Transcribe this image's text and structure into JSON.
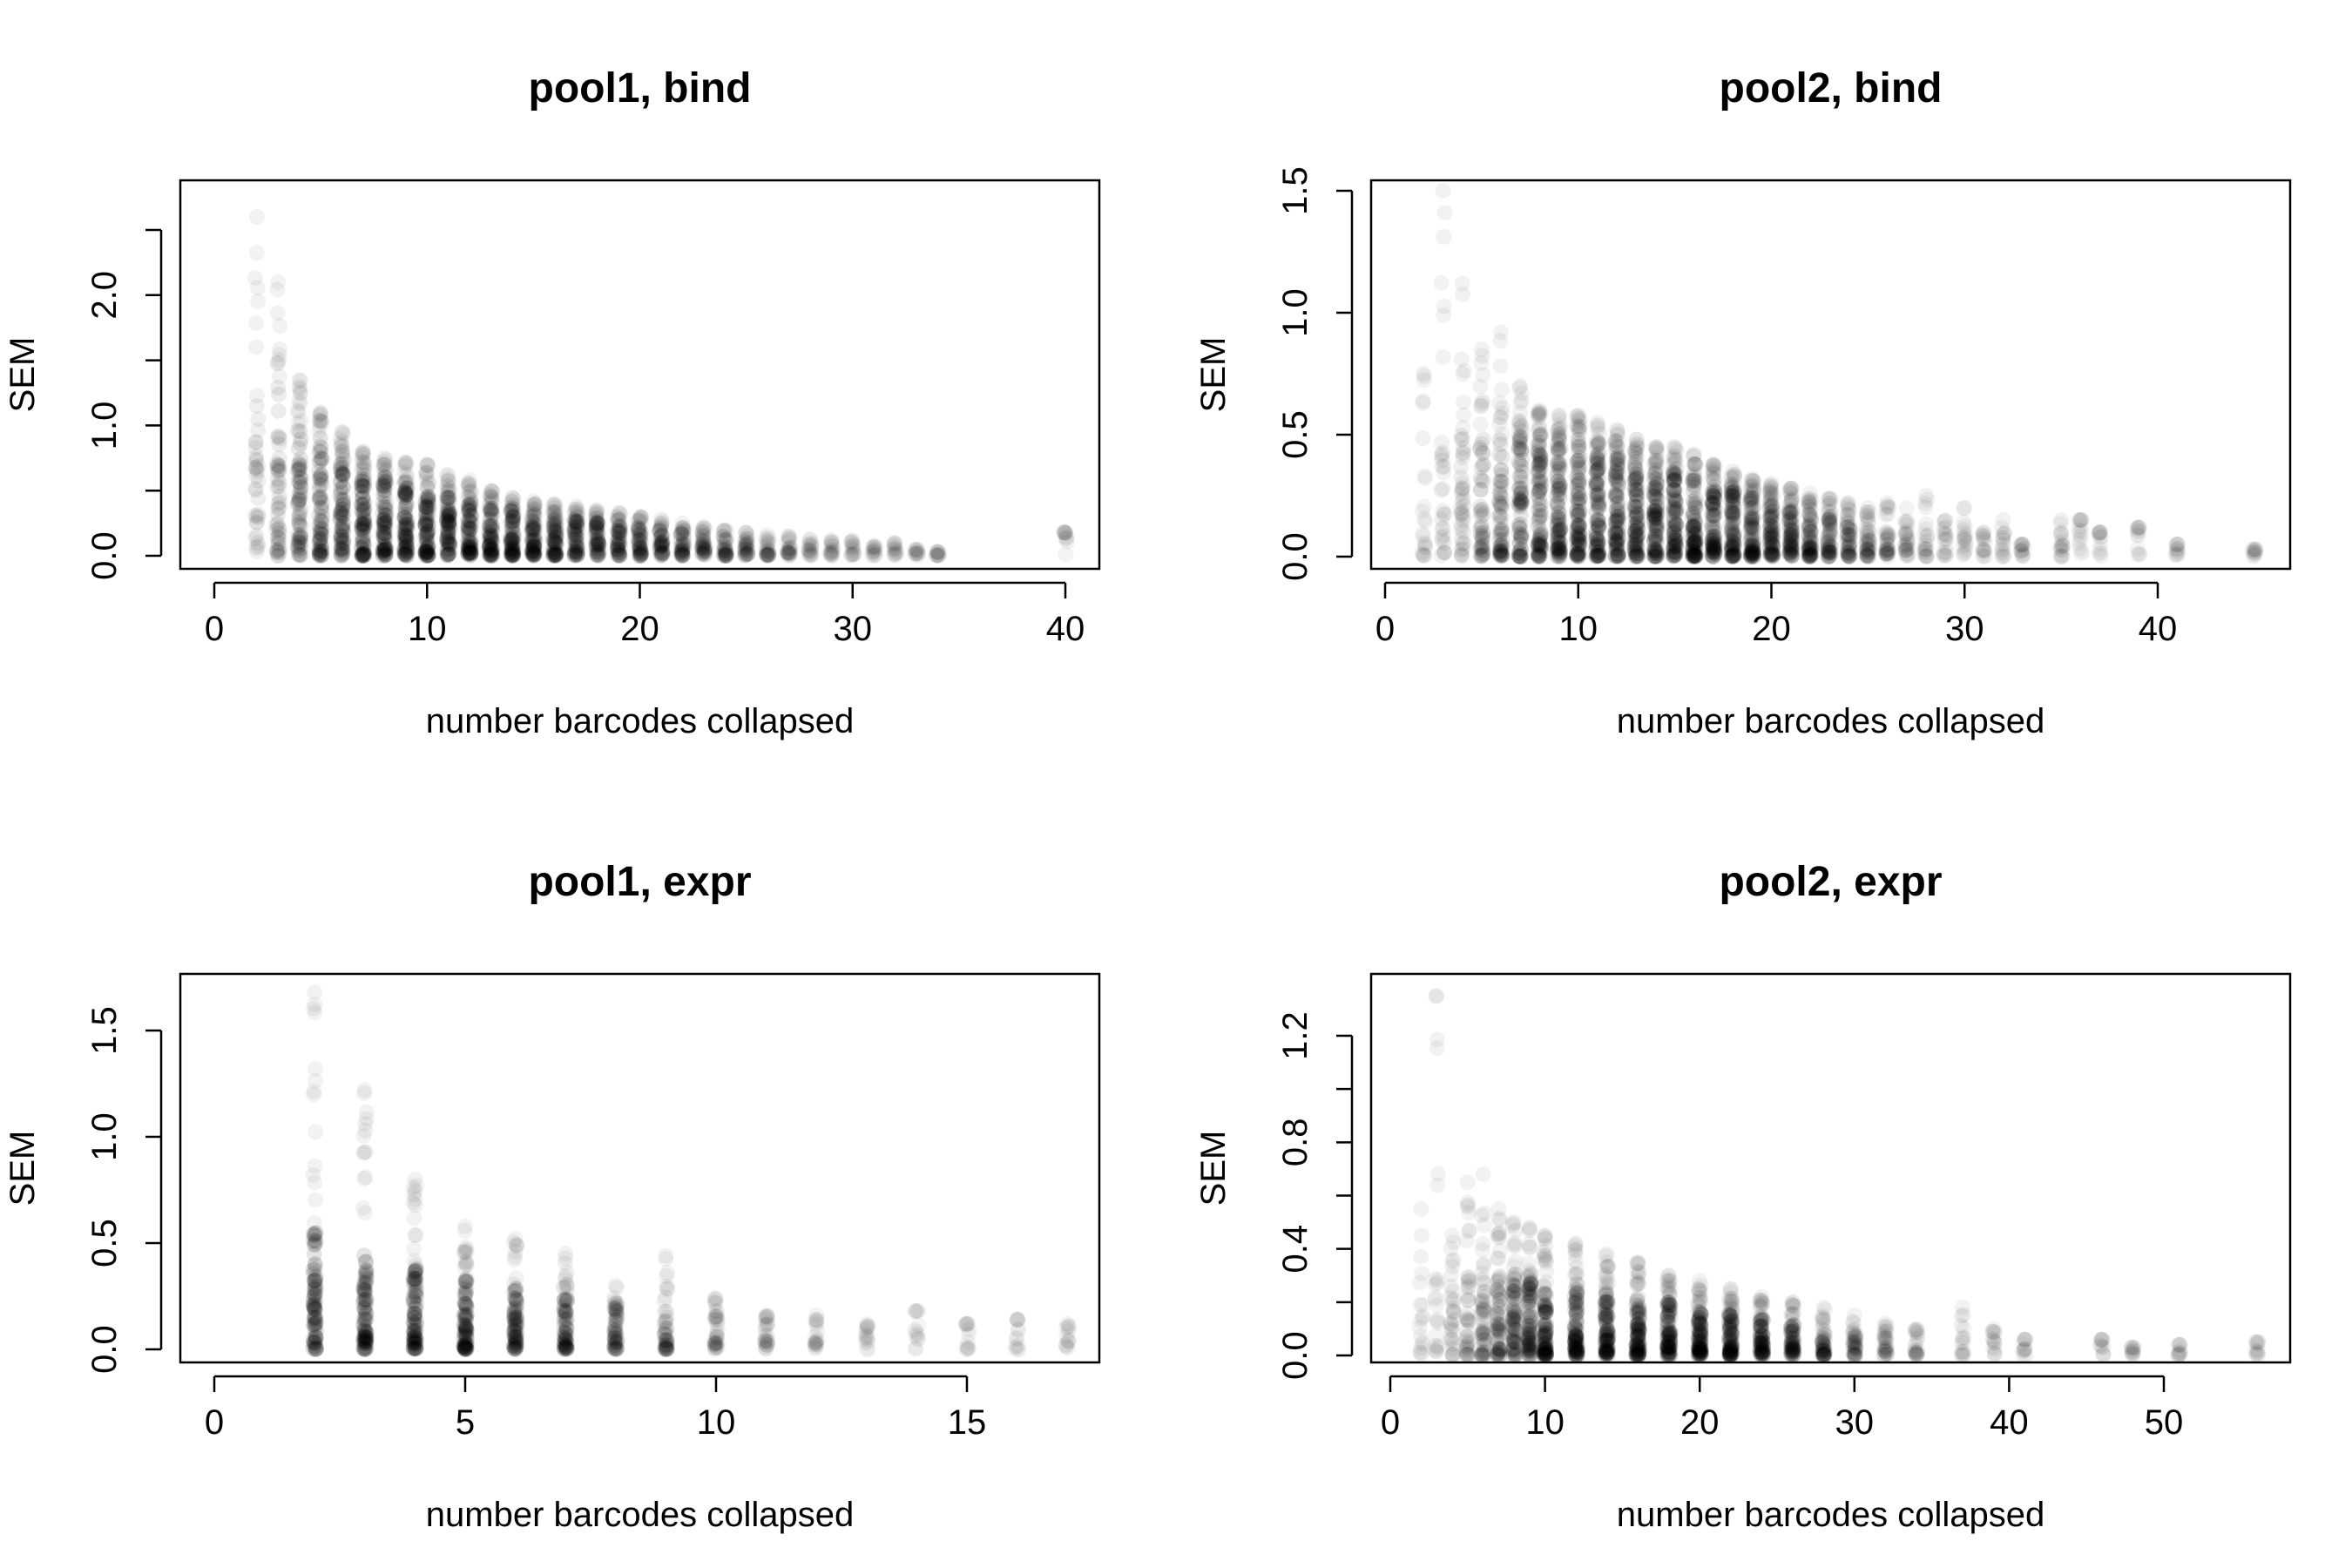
{
  "chart_data": [
    {
      "type": "scatter",
      "title": "pool1, bind",
      "xlabel": "number barcodes collapsed",
      "ylabel": "SEM",
      "xlim": [
        0,
        40
      ],
      "ylim": [
        0,
        2.5
      ],
      "xticks": [
        "0",
        "10",
        "20",
        "30",
        "40"
      ],
      "yticks": [
        "0.0",
        "1.0",
        "2.0"
      ],
      "y_minor_ticks": [
        0.5,
        1.5,
        2.5
      ],
      "point_color": "#000000",
      "summary": [
        {
          "x": 2,
          "max": 2.6,
          "core_max": 1.2,
          "density": 0.35
        },
        {
          "x": 3,
          "max": 2.1,
          "core_max": 1.3,
          "density": 0.55
        },
        {
          "x": 4,
          "max": 1.35,
          "core_max": 1.0,
          "density": 0.75
        },
        {
          "x": 5,
          "max": 1.1,
          "core_max": 0.85,
          "density": 0.85
        },
        {
          "x": 6,
          "max": 0.95,
          "core_max": 0.75,
          "density": 0.9
        },
        {
          "x": 7,
          "max": 0.8,
          "core_max": 0.65,
          "density": 0.95
        },
        {
          "x": 8,
          "max": 0.75,
          "core_max": 0.6,
          "density": 0.95
        },
        {
          "x": 9,
          "max": 0.72,
          "core_max": 0.55,
          "density": 0.95
        },
        {
          "x": 10,
          "max": 0.7,
          "core_max": 0.5,
          "density": 0.95
        },
        {
          "x": 11,
          "max": 0.62,
          "core_max": 0.45,
          "density": 0.9
        },
        {
          "x": 12,
          "max": 0.58,
          "core_max": 0.42,
          "density": 0.9
        },
        {
          "x": 13,
          "max": 0.5,
          "core_max": 0.38,
          "density": 0.85
        },
        {
          "x": 14,
          "max": 0.45,
          "core_max": 0.35,
          "density": 0.85
        },
        {
          "x": 15,
          "max": 0.42,
          "core_max": 0.32,
          "density": 0.8
        },
        {
          "x": 16,
          "max": 0.4,
          "core_max": 0.3,
          "density": 0.75
        },
        {
          "x": 17,
          "max": 0.38,
          "core_max": 0.28,
          "density": 0.7
        },
        {
          "x": 18,
          "max": 0.35,
          "core_max": 0.26,
          "density": 0.65
        },
        {
          "x": 19,
          "max": 0.33,
          "core_max": 0.24,
          "density": 0.6
        },
        {
          "x": 20,
          "max": 0.3,
          "core_max": 0.22,
          "density": 0.55
        },
        {
          "x": 21,
          "max": 0.28,
          "core_max": 0.2,
          "density": 0.5
        },
        {
          "x": 22,
          "max": 0.25,
          "core_max": 0.18,
          "density": 0.45
        },
        {
          "x": 23,
          "max": 0.22,
          "core_max": 0.16,
          "density": 0.4
        },
        {
          "x": 24,
          "max": 0.2,
          "core_max": 0.14,
          "density": 0.35
        },
        {
          "x": 25,
          "max": 0.18,
          "core_max": 0.12,
          "density": 0.3
        },
        {
          "x": 26,
          "max": 0.16,
          "core_max": 0.1,
          "density": 0.22
        },
        {
          "x": 27,
          "max": 0.15,
          "core_max": 0.1,
          "density": 0.18
        },
        {
          "x": 28,
          "max": 0.13,
          "core_max": 0.08,
          "density": 0.12
        },
        {
          "x": 29,
          "max": 0.12,
          "core_max": 0.08,
          "density": 0.1
        },
        {
          "x": 30,
          "max": 0.12,
          "core_max": 0.08,
          "density": 0.08
        },
        {
          "x": 31,
          "max": 0.08,
          "core_max": 0.06,
          "density": 0.06
        },
        {
          "x": 32,
          "max": 0.1,
          "core_max": 0.06,
          "density": 0.06
        },
        {
          "x": 33,
          "max": 0.05,
          "core_max": 0.04,
          "density": 0.04
        },
        {
          "x": 34,
          "max": 0.03,
          "core_max": 0.03,
          "density": 0.04
        },
        {
          "x": 40,
          "max": 0.18,
          "core_max": 0.18,
          "density": 0.03
        }
      ]
    },
    {
      "type": "scatter",
      "title": "pool2, bind",
      "xlabel": "number barcodes collapsed",
      "ylabel": "SEM",
      "xlim": [
        0,
        45
      ],
      "ylim": [
        0,
        1.5
      ],
      "xticks": [
        "0",
        "10",
        "20",
        "30",
        "40"
      ],
      "yticks": [
        "0.0",
        "0.5",
        "1.0",
        "1.5"
      ],
      "y_minor_ticks": [],
      "point_color": "#000000",
      "summary": [
        {
          "x": 2,
          "max": 0.75,
          "core_max": 0.4,
          "density": 0.15
        },
        {
          "x": 3,
          "max": 1.5,
          "core_max": 0.5,
          "density": 0.25
        },
        {
          "x": 4,
          "max": 1.12,
          "core_max": 0.5,
          "density": 0.4
        },
        {
          "x": 5,
          "max": 0.85,
          "core_max": 0.5,
          "density": 0.55
        },
        {
          "x": 6,
          "max": 0.92,
          "core_max": 0.5,
          "density": 0.7
        },
        {
          "x": 7,
          "max": 0.7,
          "core_max": 0.5,
          "density": 0.85
        },
        {
          "x": 8,
          "max": 0.6,
          "core_max": 0.5,
          "density": 0.95
        },
        {
          "x": 9,
          "max": 0.58,
          "core_max": 0.48,
          "density": 1.0
        },
        {
          "x": 10,
          "max": 0.58,
          "core_max": 0.48,
          "density": 1.0
        },
        {
          "x": 11,
          "max": 0.55,
          "core_max": 0.45,
          "density": 1.0
        },
        {
          "x": 12,
          "max": 0.52,
          "core_max": 0.42,
          "density": 1.0
        },
        {
          "x": 13,
          "max": 0.48,
          "core_max": 0.4,
          "density": 1.0
        },
        {
          "x": 14,
          "max": 0.45,
          "core_max": 0.38,
          "density": 1.0
        },
        {
          "x": 15,
          "max": 0.45,
          "core_max": 0.35,
          "density": 1.0
        },
        {
          "x": 16,
          "max": 0.42,
          "core_max": 0.32,
          "density": 1.0
        },
        {
          "x": 17,
          "max": 0.38,
          "core_max": 0.3,
          "density": 0.95
        },
        {
          "x": 18,
          "max": 0.35,
          "core_max": 0.28,
          "density": 0.95
        },
        {
          "x": 19,
          "max": 0.32,
          "core_max": 0.26,
          "density": 0.9
        },
        {
          "x": 20,
          "max": 0.3,
          "core_max": 0.24,
          "density": 0.85
        },
        {
          "x": 21,
          "max": 0.28,
          "core_max": 0.22,
          "density": 0.8
        },
        {
          "x": 22,
          "max": 0.26,
          "core_max": 0.2,
          "density": 0.7
        },
        {
          "x": 23,
          "max": 0.24,
          "core_max": 0.18,
          "density": 0.6
        },
        {
          "x": 24,
          "max": 0.22,
          "core_max": 0.16,
          "density": 0.5
        },
        {
          "x": 25,
          "max": 0.2,
          "core_max": 0.14,
          "density": 0.4
        },
        {
          "x": 26,
          "max": 0.22,
          "core_max": 0.12,
          "density": 0.3
        },
        {
          "x": 27,
          "max": 0.2,
          "core_max": 0.1,
          "density": 0.22
        },
        {
          "x": 28,
          "max": 0.25,
          "core_max": 0.1,
          "density": 0.15
        },
        {
          "x": 29,
          "max": 0.15,
          "core_max": 0.1,
          "density": 0.12
        },
        {
          "x": 30,
          "max": 0.2,
          "core_max": 0.1,
          "density": 0.1
        },
        {
          "x": 31,
          "max": 0.1,
          "core_max": 0.08,
          "density": 0.08
        },
        {
          "x": 32,
          "max": 0.15,
          "core_max": 0.08,
          "density": 0.08
        },
        {
          "x": 33,
          "max": 0.05,
          "core_max": 0.05,
          "density": 0.05
        },
        {
          "x": 35,
          "max": 0.15,
          "core_max": 0.08,
          "density": 0.1
        },
        {
          "x": 36,
          "max": 0.15,
          "core_max": 0.15,
          "density": 0.05
        },
        {
          "x": 37,
          "max": 0.1,
          "core_max": 0.1,
          "density": 0.04
        },
        {
          "x": 39,
          "max": 0.12,
          "core_max": 0.12,
          "density": 0.04
        },
        {
          "x": 41,
          "max": 0.05,
          "core_max": 0.05,
          "density": 0.03
        },
        {
          "x": 45,
          "max": 0.03,
          "core_max": 0.03,
          "density": 0.03
        }
      ]
    },
    {
      "type": "scatter",
      "title": "pool1, expr",
      "xlabel": "number barcodes collapsed",
      "ylabel": "SEM",
      "xlim": [
        0,
        17
      ],
      "ylim": [
        0,
        1.7
      ],
      "xticks": [
        "0",
        "5",
        "10",
        "15"
      ],
      "yticks": [
        "0.0",
        "0.5",
        "1.0",
        "1.5"
      ],
      "y_minor_ticks": [],
      "point_color": "#000000",
      "summary": [
        {
          "x": 2,
          "max": 1.68,
          "core_max": 0.55,
          "density": 1.0
        },
        {
          "x": 3,
          "max": 1.22,
          "core_max": 0.45,
          "density": 1.0
        },
        {
          "x": 4,
          "max": 0.8,
          "core_max": 0.38,
          "density": 1.0
        },
        {
          "x": 5,
          "max": 0.58,
          "core_max": 0.33,
          "density": 0.95
        },
        {
          "x": 6,
          "max": 0.52,
          "core_max": 0.28,
          "density": 0.85
        },
        {
          "x": 7,
          "max": 0.45,
          "core_max": 0.24,
          "density": 0.75
        },
        {
          "x": 8,
          "max": 0.3,
          "core_max": 0.2,
          "density": 0.6
        },
        {
          "x": 9,
          "max": 0.44,
          "core_max": 0.18,
          "density": 0.45
        },
        {
          "x": 10,
          "max": 0.24,
          "core_max": 0.16,
          "density": 0.3
        },
        {
          "x": 11,
          "max": 0.16,
          "core_max": 0.14,
          "density": 0.2
        },
        {
          "x": 12,
          "max": 0.16,
          "core_max": 0.12,
          "density": 0.12
        },
        {
          "x": 13,
          "max": 0.12,
          "core_max": 0.1,
          "density": 0.06
        },
        {
          "x": 14,
          "max": 0.18,
          "core_max": 0.18,
          "density": 0.04
        },
        {
          "x": 15,
          "max": 0.12,
          "core_max": 0.12,
          "density": 0.04
        },
        {
          "x": 16,
          "max": 0.14,
          "core_max": 0.14,
          "density": 0.04
        },
        {
          "x": 17,
          "max": 0.12,
          "core_max": 0.1,
          "density": 0.04
        }
      ]
    },
    {
      "type": "scatter",
      "title": "pool2, expr",
      "xlabel": "number barcodes collapsed",
      "ylabel": "SEM",
      "xlim": [
        0,
        56
      ],
      "ylim": [
        0,
        1.35
      ],
      "xticks": [
        "0",
        "10",
        "20",
        "30",
        "40",
        "50"
      ],
      "yticks": [
        "0.0",
        "0.4",
        "0.8",
        "1.2"
      ],
      "y_minor_ticks": [
        0.2,
        0.6,
        1.0
      ],
      "point_color": "#000000",
      "summary": [
        {
          "x": 2,
          "max": 0.55,
          "core_max": 0.2,
          "density": 0.1
        },
        {
          "x": 3,
          "max": 1.35,
          "core_max": 0.3,
          "density": 0.15
        },
        {
          "x": 4,
          "max": 0.45,
          "core_max": 0.3,
          "density": 0.25
        },
        {
          "x": 5,
          "max": 0.65,
          "core_max": 0.3,
          "density": 0.35
        },
        {
          "x": 6,
          "max": 0.68,
          "core_max": 0.3,
          "density": 0.5
        },
        {
          "x": 7,
          "max": 0.55,
          "core_max": 0.3,
          "density": 0.65
        },
        {
          "x": 8,
          "max": 0.5,
          "core_max": 0.3,
          "density": 0.8
        },
        {
          "x": 9,
          "max": 0.48,
          "core_max": 0.28,
          "density": 0.9
        },
        {
          "x": 10,
          "max": 0.45,
          "core_max": 0.26,
          "density": 1.0
        },
        {
          "x": 12,
          "max": 0.42,
          "core_max": 0.25,
          "density": 1.0
        },
        {
          "x": 14,
          "max": 0.38,
          "core_max": 0.24,
          "density": 1.0
        },
        {
          "x": 16,
          "max": 0.35,
          "core_max": 0.22,
          "density": 1.0
        },
        {
          "x": 18,
          "max": 0.3,
          "core_max": 0.2,
          "density": 1.0
        },
        {
          "x": 20,
          "max": 0.28,
          "core_max": 0.18,
          "density": 1.0
        },
        {
          "x": 22,
          "max": 0.25,
          "core_max": 0.16,
          "density": 0.95
        },
        {
          "x": 24,
          "max": 0.22,
          "core_max": 0.14,
          "density": 0.85
        },
        {
          "x": 26,
          "max": 0.2,
          "core_max": 0.12,
          "density": 0.7
        },
        {
          "x": 28,
          "max": 0.18,
          "core_max": 0.1,
          "density": 0.5
        },
        {
          "x": 30,
          "max": 0.15,
          "core_max": 0.08,
          "density": 0.35
        },
        {
          "x": 32,
          "max": 0.12,
          "core_max": 0.08,
          "density": 0.25
        },
        {
          "x": 34,
          "max": 0.1,
          "core_max": 0.08,
          "density": 0.15
        },
        {
          "x": 37,
          "max": 0.18,
          "core_max": 0.08,
          "density": 0.08
        },
        {
          "x": 39,
          "max": 0.1,
          "core_max": 0.08,
          "density": 0.06
        },
        {
          "x": 41,
          "max": 0.06,
          "core_max": 0.06,
          "density": 0.04
        },
        {
          "x": 46,
          "max": 0.06,
          "core_max": 0.06,
          "density": 0.03
        },
        {
          "x": 48,
          "max": 0.03,
          "core_max": 0.03,
          "density": 0.03
        },
        {
          "x": 51,
          "max": 0.04,
          "core_max": 0.04,
          "density": 0.03
        },
        {
          "x": 56,
          "max": 0.05,
          "core_max": 0.05,
          "density": 0.03
        }
      ]
    }
  ]
}
